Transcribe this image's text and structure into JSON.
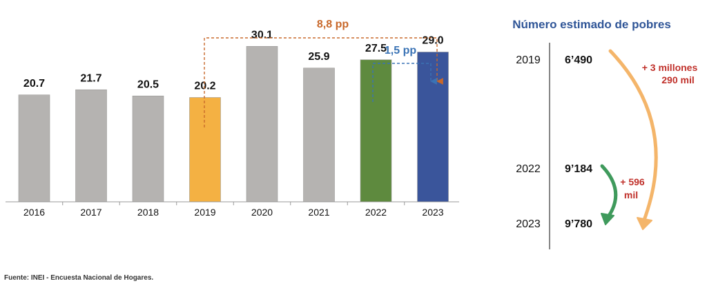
{
  "chart_data": {
    "type": "bar",
    "categories": [
      "2016",
      "2017",
      "2018",
      "2019",
      "2020",
      "2021",
      "2022",
      "2023"
    ],
    "values": [
      20.7,
      21.7,
      20.5,
      20.2,
      30.1,
      25.9,
      27.5,
      29.0
    ],
    "value_labels": [
      "20.7",
      "21.7",
      "20.5",
      "20.2",
      "30.1",
      "25.9",
      "27.5",
      "29.0"
    ],
    "bar_colors": [
      "#b5b3b1",
      "#b5b3b1",
      "#b5b3b1",
      "#f4b143",
      "#b5b3b1",
      "#b5b3b1",
      "#5e8a3e",
      "#3a559b"
    ],
    "ylim": [
      0,
      36
    ],
    "grid": false,
    "annotations": [
      {
        "text": "8,8 pp",
        "from": "2019",
        "to": "2023",
        "color": "#c8682a",
        "style": "dashed-bracket"
      },
      {
        "text": "1,5 pp",
        "from": "2022",
        "to": "2023",
        "color": "#3a73b5",
        "style": "dashed-bracket"
      }
    ]
  },
  "poverty_panel": {
    "title": "Número estimado de pobres",
    "title_color": "#2f5597",
    "rows": [
      {
        "year": "2019",
        "value": "6’490"
      },
      {
        "year": "2022",
        "value": "9’184"
      },
      {
        "year": "2023",
        "value": "9’780"
      }
    ],
    "arrow_long": {
      "label_lines": [
        "+ 3 millones",
        "290 mil"
      ],
      "color": "#f4b56a",
      "label_color": "#c0302a"
    },
    "arrow_short": {
      "label_lines": [
        "+ 596",
        "mil"
      ],
      "color": "#3f9a5c",
      "label_color": "#c0302a"
    }
  },
  "source": "Fuente: INEI - Encuesta Nacional de Hogares."
}
